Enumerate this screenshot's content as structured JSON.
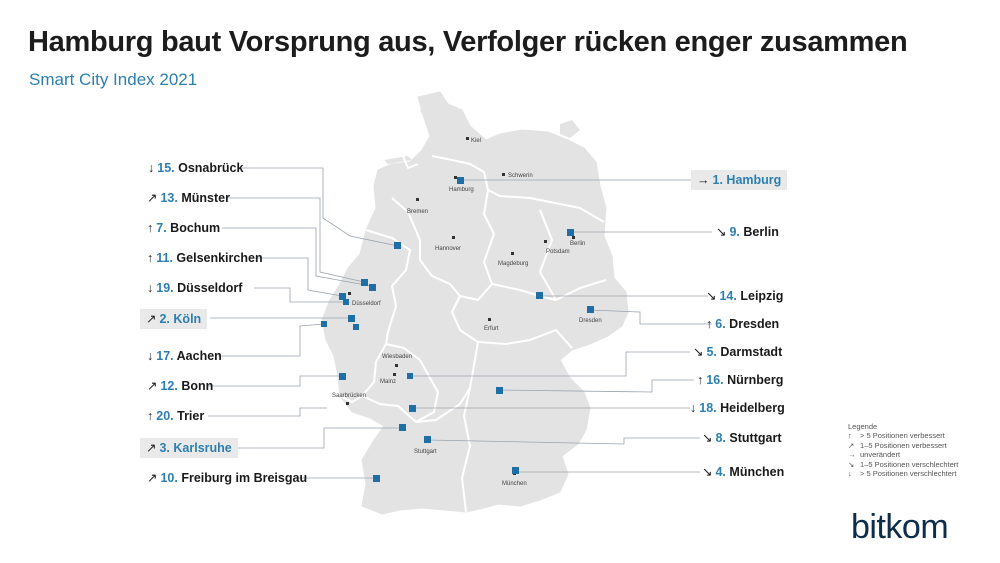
{
  "title": "Hamburg baut Vorsprung aus, Verfolger rücken enger zusammen",
  "subtitle": "Smart City Index 2021",
  "map_places": [
    {
      "name": "Kiel"
    },
    {
      "name": "Schwerin"
    },
    {
      "name": "Hamburg"
    },
    {
      "name": "Bremen"
    },
    {
      "name": "Hannover"
    },
    {
      "name": "Berlin"
    },
    {
      "name": "Potsdam"
    },
    {
      "name": "Magdeburg"
    },
    {
      "name": "Düsseldorf"
    },
    {
      "name": "Erfurt"
    },
    {
      "name": "Dresden"
    },
    {
      "name": "Wiesbaden"
    },
    {
      "name": "Mainz"
    },
    {
      "name": "Saarbrücken"
    },
    {
      "name": "Stuttgart"
    },
    {
      "name": "München"
    }
  ],
  "cities_left": [
    {
      "arrow": "↓",
      "rank": "15.",
      "name": "Osnabrück",
      "boxed": false
    },
    {
      "arrow": "↗",
      "rank": "13.",
      "name": "Münster",
      "boxed": false
    },
    {
      "arrow": "↑",
      "rank": "7.",
      "name": "Bochum",
      "boxed": false
    },
    {
      "arrow": "↑",
      "rank": "11.",
      "name": "Gelsenkirchen",
      "boxed": false
    },
    {
      "arrow": "↓",
      "rank": "19.",
      "name": "Düsseldorf",
      "boxed": false
    },
    {
      "arrow": "↗",
      "rank": "2.",
      "name": "Köln",
      "boxed": true
    },
    {
      "arrow": "↓",
      "rank": "17.",
      "name": "Aachen",
      "boxed": false
    },
    {
      "arrow": "↗",
      "rank": "12.",
      "name": "Bonn",
      "boxed": false
    },
    {
      "arrow": "↑",
      "rank": "20.",
      "name": "Trier",
      "boxed": false
    },
    {
      "arrow": "↗",
      "rank": "3.",
      "name": "Karlsruhe",
      "boxed": true
    },
    {
      "arrow": "↗",
      "rank": "10.",
      "name": "Freiburg im Breisgau",
      "boxed": false
    }
  ],
  "cities_right": [
    {
      "arrow": "→",
      "rank": "1.",
      "name": "Hamburg",
      "boxed": true
    },
    {
      "arrow": "↘",
      "rank": "9.",
      "name": "Berlin",
      "boxed": false
    },
    {
      "arrow": "↘",
      "rank": "14.",
      "name": "Leipzig",
      "boxed": false
    },
    {
      "arrow": "↑",
      "rank": "6.",
      "name": "Dresden",
      "boxed": false
    },
    {
      "arrow": "↘",
      "rank": "5.",
      "name": "Darmstadt",
      "boxed": false
    },
    {
      "arrow": "↑",
      "rank": "16.",
      "name": "Nürnberg",
      "boxed": false
    },
    {
      "arrow": "↓",
      "rank": "18.",
      "name": "Heidelberg",
      "boxed": false
    },
    {
      "arrow": "↘",
      "rank": "8.",
      "name": "Stuttgart",
      "boxed": false
    },
    {
      "arrow": "↘",
      "rank": "4.",
      "name": "München",
      "boxed": false
    }
  ],
  "legend": {
    "title": "Legende",
    "items": [
      {
        "symbol": "↑",
        "text": "> 5 Positionen verbessert"
      },
      {
        "symbol": "↗",
        "text": "1–5 Positionen verbessert"
      },
      {
        "symbol": "→",
        "text": "unverändert"
      },
      {
        "symbol": "↘",
        "text": "1–5 Positionen verschlechtert"
      },
      {
        "symbol": "↓",
        "text": "> 5 Positionen verschlechtert"
      }
    ]
  },
  "logo": "bitkom",
  "colors": {
    "accent": "#2c7fb0",
    "map_fill": "#e3e3e4",
    "border": "#ffffff",
    "marker": "#1e6fa5",
    "leader": "#9aa4ad",
    "label_box": "#e9e9ea",
    "logo": "#0d2d4a"
  }
}
